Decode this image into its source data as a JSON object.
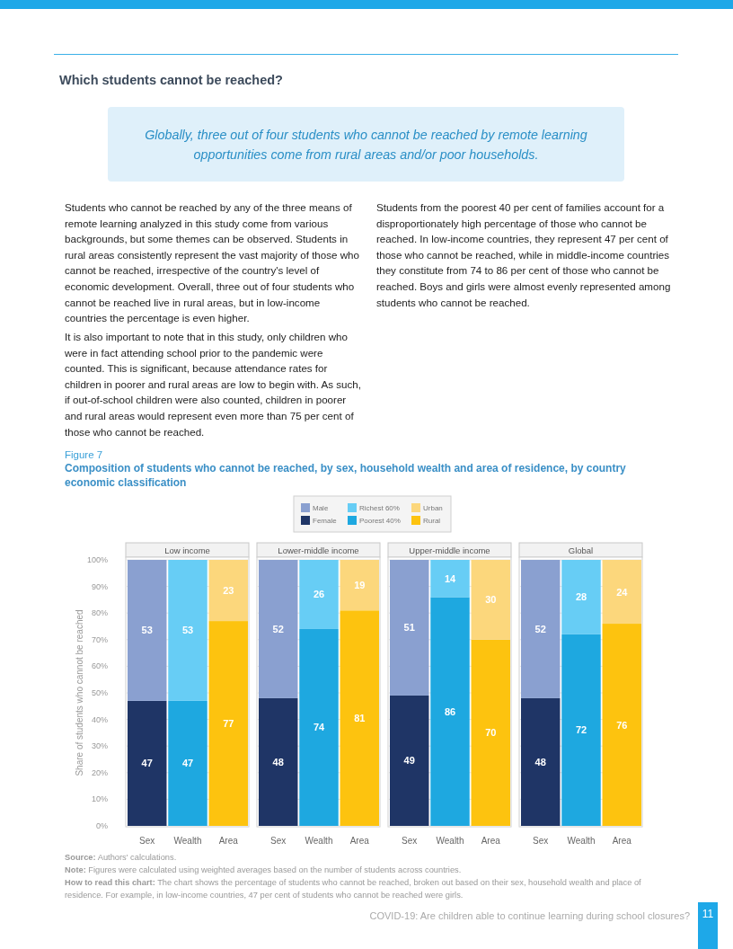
{
  "chart_data": [
    {
      "type": "bar",
      "title": "Low income",
      "ylabel": "Share of students who cannot be reached",
      "stacked": true,
      "categories": [
        "Sex",
        "Wealth",
        "Area"
      ],
      "series": [
        {
          "name": "Female",
          "color": "#1f3566",
          "values": [
            47,
            null,
            null
          ]
        },
        {
          "name": "Poorest 40%",
          "color": "#1ea8e0",
          "values": [
            null,
            47,
            null
          ]
        },
        {
          "name": "Rural",
          "color": "#fdc30f",
          "values": [
            null,
            null,
            77
          ]
        },
        {
          "name": "Male",
          "color": "#8aa0d0",
          "values": [
            53,
            null,
            null
          ]
        },
        {
          "name": "Richest 60%",
          "color": "#67cdf5",
          "values": [
            null,
            53,
            null
          ]
        },
        {
          "name": "Urban",
          "color": "#fcd77c",
          "values": [
            null,
            null,
            23
          ]
        }
      ],
      "ylim": [
        0,
        100
      ],
      "yticks": [
        {
          "value": 0,
          "label": "0%"
        },
        {
          "value": 10,
          "label": "10%"
        },
        {
          "value": 20,
          "label": "20%"
        },
        {
          "value": 30,
          "label": "30%"
        },
        {
          "value": 40,
          "label": "40%"
        },
        {
          "value": 50,
          "label": "50%"
        },
        {
          "value": 60,
          "label": "60%"
        },
        {
          "value": 70,
          "label": "70%"
        },
        {
          "value": 80,
          "label": "80%"
        },
        {
          "value": 90,
          "label": "90%"
        },
        {
          "value": 100,
          "label": "100%"
        }
      ],
      "grid": "y",
      "legend": "top",
      "data_labels": true,
      "annotations": [
        "Which students cannot be reached?",
        "Globally, three out of four students who cannot be reached by remote learning opportunities come from rural areas and/or poor households.",
        "Students who cannot be reached by any of the three means of remote learning analyzed in this study come from various backgrounds, but some themes can be observed. Students in rural areas consistently represent the vast majority of those who cannot be reached, irrespective of the country's level of economic development. Overall, three out of four students who cannot be reached live in rural areas, but in low-income countries the percentage is even higher.",
        "It is also important to note that in this study, only children who were in fact attending school prior to the pandemic were counted. This is significant, because attendance rates for children in poorer and rural areas are low to begin with. As such, if out-of-school children were also counted, children in poorer and rural areas would represent even more than 75 per cent of those who cannot be reached.",
        "Students from the poorest 40 per cent of families account for a disproportionately high percentage of those who cannot be reached. In low-income countries, they represent 47 per cent of those who cannot be reached, while in middle-income countries they constitute from 74 to 86 per cent of those who cannot be reached. Boys and girls were almost evenly represented among students who cannot be reached.",
        "Figure 7",
        "Composition of students who cannot be reached, by sex, household wealth and area of residence, by country economic classification",
        "Source: Authors' calculations.",
        "Note: Figures were calculated using weighted averages based on the number of students across countries.",
        "How to read this chart: The chart shows the percentage of students who cannot be reached, broken out based on their sex, household wealth and place of residence. For example, in low-income countries, 47 per cent of students who cannot be reached were girls.",
        "COVID-19: Are children able to continue learning during school closures?",
        "11"
      ]
    },
    {
      "type": "bar",
      "title": "Lower-middle income",
      "stacked": true,
      "categories": [
        "Sex",
        "Wealth",
        "Area"
      ],
      "series": [
        {
          "color": "#1f3566",
          "values": [
            48,
            null,
            null
          ]
        },
        {
          "color": "#1ea8e0",
          "values": [
            null,
            74,
            null
          ]
        },
        {
          "color": "#fdc30f",
          "values": [
            null,
            null,
            81
          ]
        },
        {
          "color": "#8aa0d0",
          "values": [
            52,
            null,
            null
          ]
        },
        {
          "color": "#67cdf5",
          "values": [
            null,
            26,
            null
          ]
        },
        {
          "color": "#fcd77c",
          "values": [
            null,
            null,
            19
          ]
        }
      ],
      "ylim": [
        0,
        100
      ],
      "yticks": [
        0,
        10,
        20,
        30,
        40,
        50,
        60,
        70,
        80,
        90,
        100
      ],
      "tick_labels": "x",
      "grid": "y",
      "data_labels": true
    },
    {
      "type": "bar",
      "title": "Upper-middle income",
      "stacked": true,
      "categories": [
        "Sex",
        "Wealth",
        "Area"
      ],
      "series": [
        {
          "color": "#1f3566",
          "values": [
            49,
            null,
            null
          ]
        },
        {
          "color": "#1ea8e0",
          "values": [
            null,
            86,
            null
          ]
        },
        {
          "color": "#fdc30f",
          "values": [
            null,
            null,
            70
          ]
        },
        {
          "color": "#8aa0d0",
          "values": [
            51,
            null,
            null
          ]
        },
        {
          "color": "#67cdf5",
          "values": [
            null,
            14,
            null
          ]
        },
        {
          "color": "#fcd77c",
          "values": [
            null,
            null,
            30
          ]
        }
      ],
      "ylim": [
        0,
        100
      ],
      "yticks": [
        0,
        10,
        20,
        30,
        40,
        50,
        60,
        70,
        80,
        90,
        100
      ],
      "tick_labels": "x",
      "grid": "y",
      "data_labels": true
    },
    {
      "type": "bar",
      "title": "Global",
      "stacked": true,
      "categories": [
        "Sex",
        "Wealth",
        "Area"
      ],
      "series": [
        {
          "color": "#1f3566",
          "values": [
            48,
            null,
            null
          ]
        },
        {
          "color": "#1ea8e0",
          "values": [
            null,
            72,
            null
          ]
        },
        {
          "color": "#fdc30f",
          "values": [
            null,
            null,
            76
          ]
        },
        {
          "color": "#8aa0d0",
          "values": [
            52,
            null,
            null
          ]
        },
        {
          "color": "#67cdf5",
          "values": [
            null,
            28,
            null
          ]
        },
        {
          "color": "#fcd77c",
          "values": [
            null,
            null,
            24
          ]
        }
      ],
      "ylim": [
        0,
        100
      ],
      "yticks": [
        0,
        10,
        20,
        30,
        40,
        50,
        60,
        70,
        80,
        90,
        100
      ],
      "tick_labels": "x",
      "grid": "y",
      "data_labels": true
    }
  ]
}
